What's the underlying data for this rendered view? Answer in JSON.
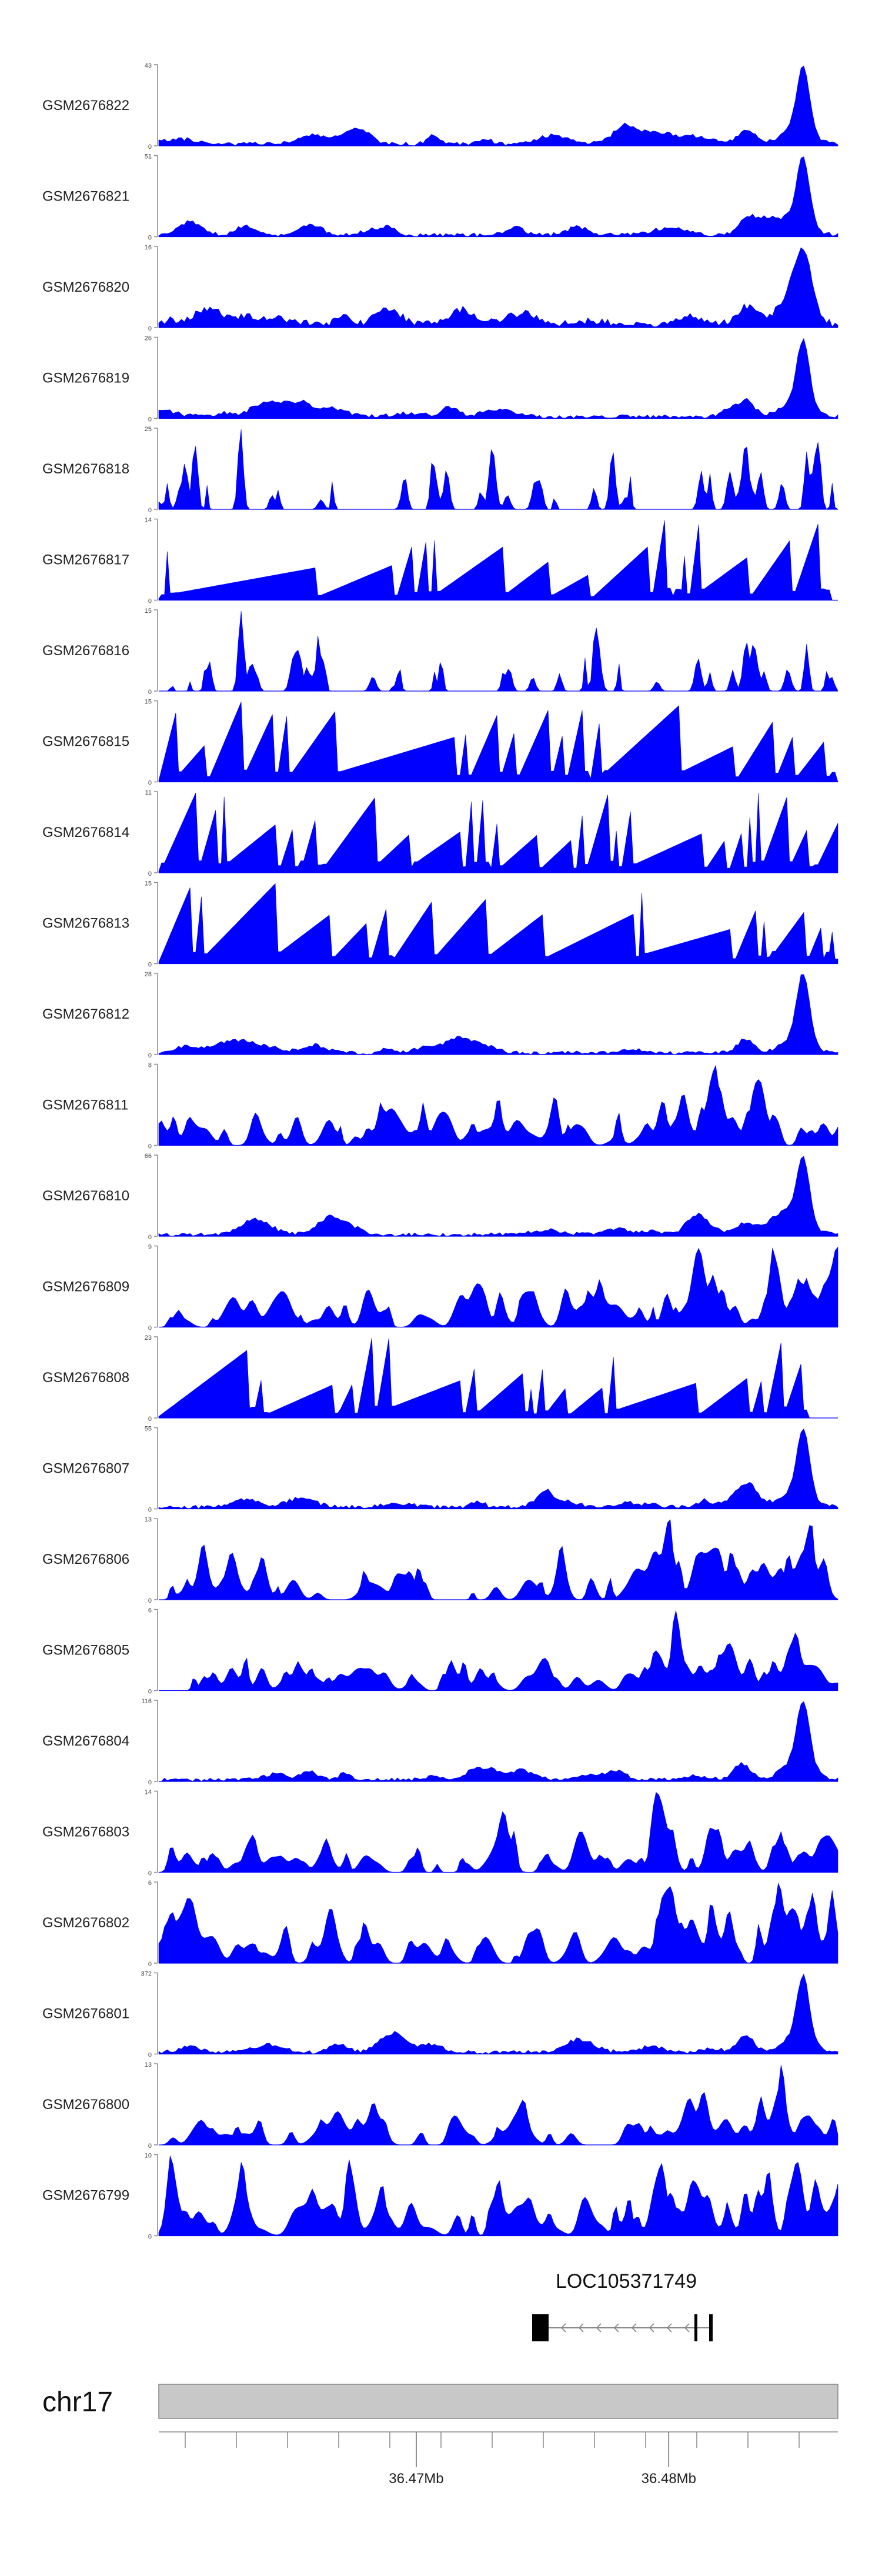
{
  "chart_data": {
    "type": "area",
    "title": "",
    "chromosome": "chr17",
    "x_unit": "Mb",
    "xlim": [
      36.4598,
      36.4867
    ],
    "fill_color": "#0000ff",
    "tracks": [
      {
        "name": "GSM2676822",
        "ymax": 43,
        "pattern": "peak_right",
        "seed": 11
      },
      {
        "name": "GSM2676821",
        "ymax": 51,
        "pattern": "peak_right",
        "seed": 12
      },
      {
        "name": "GSM2676820",
        "ymax": 16,
        "pattern": "broad_peak",
        "seed": 13
      },
      {
        "name": "GSM2676819",
        "ymax": 26,
        "pattern": "peak_right",
        "seed": 14
      },
      {
        "name": "GSM2676818",
        "ymax": 25,
        "pattern": "spiky",
        "seed": 15
      },
      {
        "name": "GSM2676817",
        "ymax": 14,
        "pattern": "sparse",
        "seed": 16
      },
      {
        "name": "GSM2676816",
        "ymax": 15,
        "pattern": "spiky",
        "seed": 17
      },
      {
        "name": "GSM2676815",
        "ymax": 15,
        "pattern": "sparse",
        "seed": 18
      },
      {
        "name": "GSM2676814",
        "ymax": 11,
        "pattern": "sparse_dense",
        "seed": 19
      },
      {
        "name": "GSM2676813",
        "ymax": 15,
        "pattern": "sparse",
        "seed": 20
      },
      {
        "name": "GSM2676812",
        "ymax": 28,
        "pattern": "peak_right",
        "seed": 21
      },
      {
        "name": "GSM2676811",
        "ymax": 8,
        "pattern": "dense",
        "seed": 22
      },
      {
        "name": "GSM2676810",
        "ymax": 66,
        "pattern": "peak_right",
        "seed": 23
      },
      {
        "name": "GSM2676809",
        "ymax": 9,
        "pattern": "dense",
        "seed": 24
      },
      {
        "name": "GSM2676808",
        "ymax": 23,
        "pattern": "sparse",
        "seed": 25
      },
      {
        "name": "GSM2676807",
        "ymax": 55,
        "pattern": "peak_right",
        "seed": 26
      },
      {
        "name": "GSM2676806",
        "ymax": 13,
        "pattern": "dense",
        "seed": 27
      },
      {
        "name": "GSM2676805",
        "ymax": 6,
        "pattern": "dense",
        "seed": 28
      },
      {
        "name": "GSM2676804",
        "ymax": 116,
        "pattern": "peak_right",
        "seed": 29
      },
      {
        "name": "GSM2676803",
        "ymax": 14,
        "pattern": "dense",
        "seed": 30
      },
      {
        "name": "GSM2676802",
        "ymax": 6,
        "pattern": "dense",
        "seed": 31
      },
      {
        "name": "GSM2676801",
        "ymax": 372,
        "pattern": "peak_right",
        "seed": 32
      },
      {
        "name": "GSM2676800",
        "ymax": 13,
        "pattern": "dense",
        "seed": 33
      },
      {
        "name": "GSM2676799",
        "ymax": 10,
        "pattern": "dense",
        "seed": 34
      }
    ],
    "gene": {
      "name": "LOC105371749",
      "strand": "-"
    },
    "xticks": [
      {
        "value": 36.47,
        "label": "36.47Mb"
      },
      {
        "value": 36.48,
        "label": "36.48Mb"
      }
    ]
  }
}
